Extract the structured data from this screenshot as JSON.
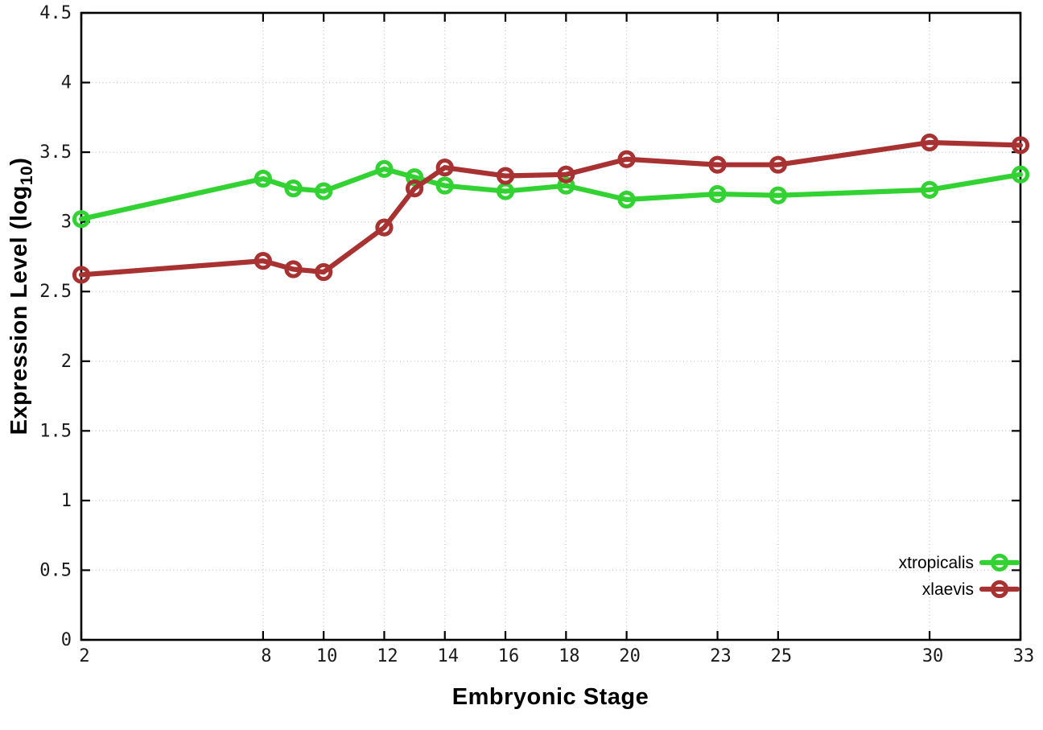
{
  "figure": {
    "xlabel": "Embryonic Stage",
    "ylabel_text": "Expression Level (log",
    "ylabel_sub": "10",
    "ylabel_suffix": ")"
  },
  "chart_data": {
    "type": "line",
    "title": "",
    "xlabel": "Embryonic Stage",
    "ylabel": "Expression Level (log10)",
    "x": [
      2,
      8,
      9,
      10,
      12,
      13,
      14,
      16,
      18,
      20,
      23,
      25,
      30,
      33
    ],
    "series": [
      {
        "name": "xtropicalis",
        "color": "#32d232",
        "values": [
          3.02,
          3.31,
          3.24,
          3.22,
          3.38,
          3.32,
          3.26,
          3.22,
          3.26,
          3.16,
          3.2,
          3.19,
          3.23,
          3.34
        ]
      },
      {
        "name": "xlaevis",
        "color": "#a83232",
        "values": [
          2.62,
          2.72,
          2.66,
          2.64,
          2.96,
          3.24,
          3.39,
          3.33,
          3.34,
          3.45,
          3.41,
          3.41,
          3.57,
          3.55
        ]
      }
    ],
    "xticks": [
      2,
      8,
      10,
      12,
      14,
      16,
      18,
      20,
      23,
      25,
      30,
      33
    ],
    "yticks": [
      0,
      0.5,
      1,
      1.5,
      2,
      2.5,
      3,
      3.5,
      4,
      4.5
    ],
    "xlim": [
      2,
      33
    ],
    "ylim": [
      0,
      4.5
    ],
    "grid": true,
    "legend_position": "inside-bottom-right",
    "marker": "open-circle",
    "grid_color": "#c4c4c4",
    "axis_color": "#000000"
  }
}
